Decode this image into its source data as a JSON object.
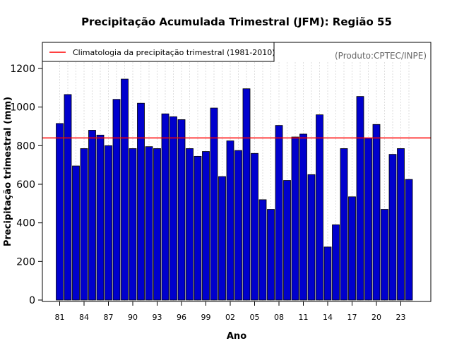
{
  "chart_data": {
    "type": "bar",
    "title": "Precipitação Acumulada Trimestral (JFM): Região 55",
    "xlabel": "Ano",
    "ylabel": "Precipitação trimestral (mm)",
    "source_note": "(Produto:CPTEC/INPE)",
    "legend": {
      "label": "Climatologia da precipitação trimestral (1981-2010)",
      "placement": "top-left"
    },
    "climatology": 840,
    "ylim": [
      0,
      1300
    ],
    "yticks": [
      0,
      200,
      400,
      600,
      800,
      1000,
      1200
    ],
    "years": [
      1981,
      1982,
      1983,
      1984,
      1985,
      1986,
      1987,
      1988,
      1989,
      1990,
      1991,
      1992,
      1993,
      1994,
      1995,
      1996,
      1997,
      1998,
      1999,
      2000,
      2001,
      2002,
      2003,
      2004,
      2005,
      2006,
      2007,
      2008,
      2009,
      2010,
      2011,
      2012,
      2013,
      2014,
      2015,
      2016,
      2017,
      2018,
      2019,
      2020,
      2021,
      2022,
      2023,
      2024
    ],
    "xtick_labels": [
      "81",
      "84",
      "87",
      "90",
      "93",
      "96",
      "99",
      "02",
      "05",
      "08",
      "11",
      "14",
      "17",
      "20",
      "23"
    ],
    "xtick_every": 3,
    "values": [
      915,
      1065,
      695,
      785,
      880,
      855,
      800,
      1040,
      1145,
      785,
      1020,
      795,
      785,
      965,
      950,
      935,
      785,
      745,
      770,
      995,
      640,
      825,
      775,
      1095,
      760,
      520,
      470,
      905,
      620,
      845,
      860,
      650,
      960,
      275,
      390,
      785,
      535,
      1055,
      840,
      910,
      470,
      755,
      785,
      625
    ],
    "colors": {
      "bar": "#0000cd",
      "bar_stroke": "#000000",
      "climatology": "#ff0000",
      "grid": "#c8c8c8",
      "source": "#666666"
    }
  }
}
